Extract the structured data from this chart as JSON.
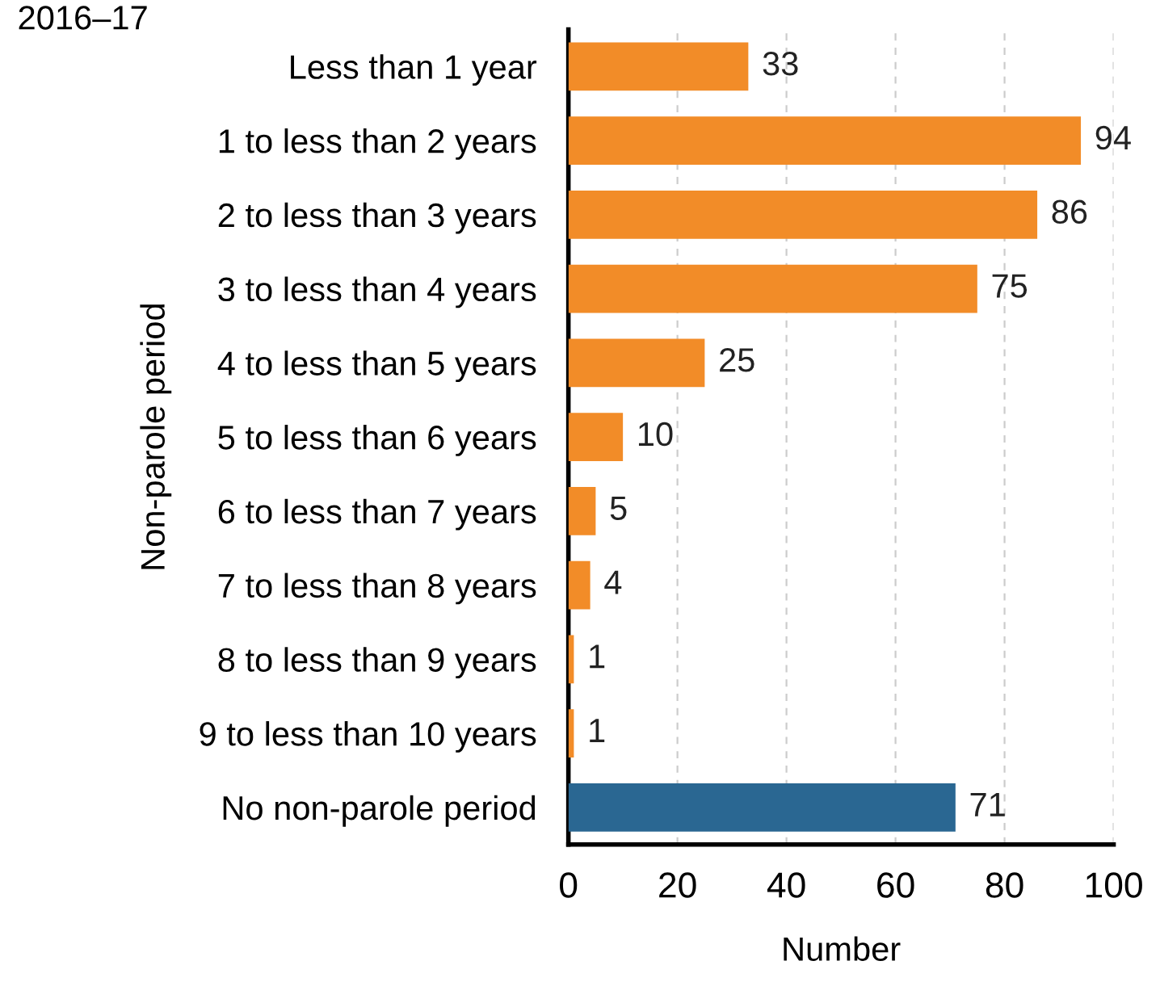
{
  "chart_data": {
    "type": "bar",
    "orientation": "horizontal",
    "title": "2016–17",
    "xlabel": "Number",
    "ylabel": "Non-parole period",
    "categories": [
      "Less than 1 year",
      "1 to less than 2 years",
      "2 to less than 3 years",
      "3 to less than 4 years",
      "4 to less than 5 years",
      "5 to less than 6 years",
      "6 to less than 7 years",
      "7 to less than 8 years",
      "8 to less than 9 years",
      "9 to less than 10 years",
      "No non-parole period"
    ],
    "values": [
      33,
      94,
      86,
      75,
      25,
      10,
      5,
      4,
      1,
      1,
      71
    ],
    "colors": [
      "#f28c28",
      "#f28c28",
      "#f28c28",
      "#f28c28",
      "#f28c28",
      "#f28c28",
      "#f28c28",
      "#f28c28",
      "#f28c28",
      "#f28c28",
      "#2a6792"
    ],
    "xlim": [
      0,
      100
    ],
    "xticks": [
      0,
      20,
      40,
      60,
      80,
      100
    ],
    "grid": "x",
    "data_labels": true,
    "legend": false
  }
}
